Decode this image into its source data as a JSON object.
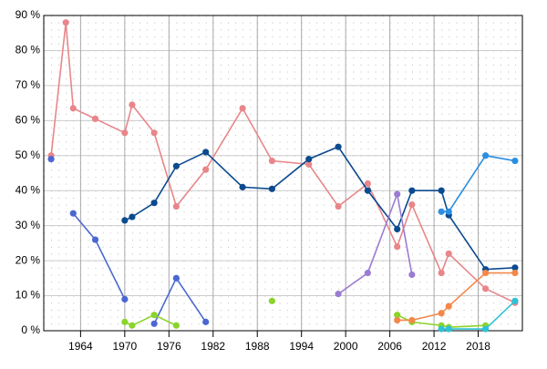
{
  "chart_data": {
    "type": "line",
    "x": [
      1960,
      1962,
      1963,
      1966,
      1970,
      1971,
      1974,
      1977,
      1981,
      1986,
      1990,
      1995,
      1999,
      2003,
      2007,
      2009,
      2013,
      2014,
      2019,
      2023
    ],
    "series": [
      {
        "color": "#e8868a",
        "values": [
          50,
          88,
          63.5,
          60.5,
          56.5,
          64.5,
          56.5,
          35.5,
          46,
          63.5,
          48.5,
          47.5,
          35.5,
          42,
          24,
          36,
          16.5,
          22,
          12,
          8
        ]
      },
      {
        "color": "#0b4a8f",
        "values": [
          null,
          null,
          null,
          null,
          31.5,
          32.5,
          36.5,
          47,
          51,
          41,
          40.5,
          49,
          52.5,
          40,
          29,
          40,
          40,
          33,
          17.5,
          18
        ]
      },
      {
        "color": "#4a67d2",
        "values": [
          49,
          null,
          33.5,
          26,
          9,
          null,
          2,
          15,
          2.5,
          null,
          null,
          null,
          null,
          null,
          null,
          null,
          null,
          null,
          null,
          null
        ]
      },
      {
        "color": "#8bd42a",
        "values": [
          null,
          null,
          null,
          null,
          2.5,
          1.5,
          4.5,
          1.5,
          null,
          null,
          8.5,
          null,
          null,
          null,
          4.5,
          2.5,
          1.5,
          1,
          1.5,
          null
        ]
      },
      {
        "color": "#9a7dd2",
        "values": [
          null,
          null,
          null,
          null,
          null,
          null,
          null,
          null,
          null,
          null,
          null,
          null,
          10.5,
          16.5,
          39,
          16,
          null,
          null,
          null,
          null
        ]
      },
      {
        "color": "#f3884a",
        "values": [
          null,
          null,
          null,
          null,
          null,
          null,
          null,
          null,
          null,
          null,
          null,
          null,
          null,
          null,
          3,
          3,
          5,
          7,
          16.5,
          16.5
        ]
      },
      {
        "color": "#2a8fe2",
        "values": [
          null,
          null,
          null,
          null,
          null,
          null,
          null,
          null,
          null,
          null,
          null,
          null,
          null,
          null,
          null,
          null,
          34,
          34,
          50,
          48.5
        ]
      },
      {
        "color": "#2ec2d6",
        "values": [
          null,
          null,
          null,
          null,
          null,
          null,
          null,
          null,
          null,
          null,
          null,
          null,
          null,
          null,
          null,
          null,
          0.5,
          0.5,
          0.5,
          8.5
        ]
      }
    ],
    "xlim": [
      1959,
      2024
    ],
    "xticks": [
      1964,
      1970,
      1976,
      1982,
      1988,
      1994,
      2000,
      2006,
      2012,
      2018
    ],
    "ylim": [
      0,
      90
    ],
    "yticks": [
      {
        "value": 0,
        "label": "0 %"
      },
      {
        "value": 10,
        "label": "10 %"
      },
      {
        "value": 20,
        "label": "20 %"
      },
      {
        "value": 30,
        "label": "30 %"
      },
      {
        "value": 40,
        "label": "40 %"
      },
      {
        "value": 50,
        "label": "50 %"
      },
      {
        "value": 60,
        "label": "60 %"
      },
      {
        "value": 70,
        "label": "70 %"
      },
      {
        "value": 80,
        "label": "80 %"
      },
      {
        "value": 90,
        "label": "90 %"
      }
    ],
    "grid": true
  }
}
